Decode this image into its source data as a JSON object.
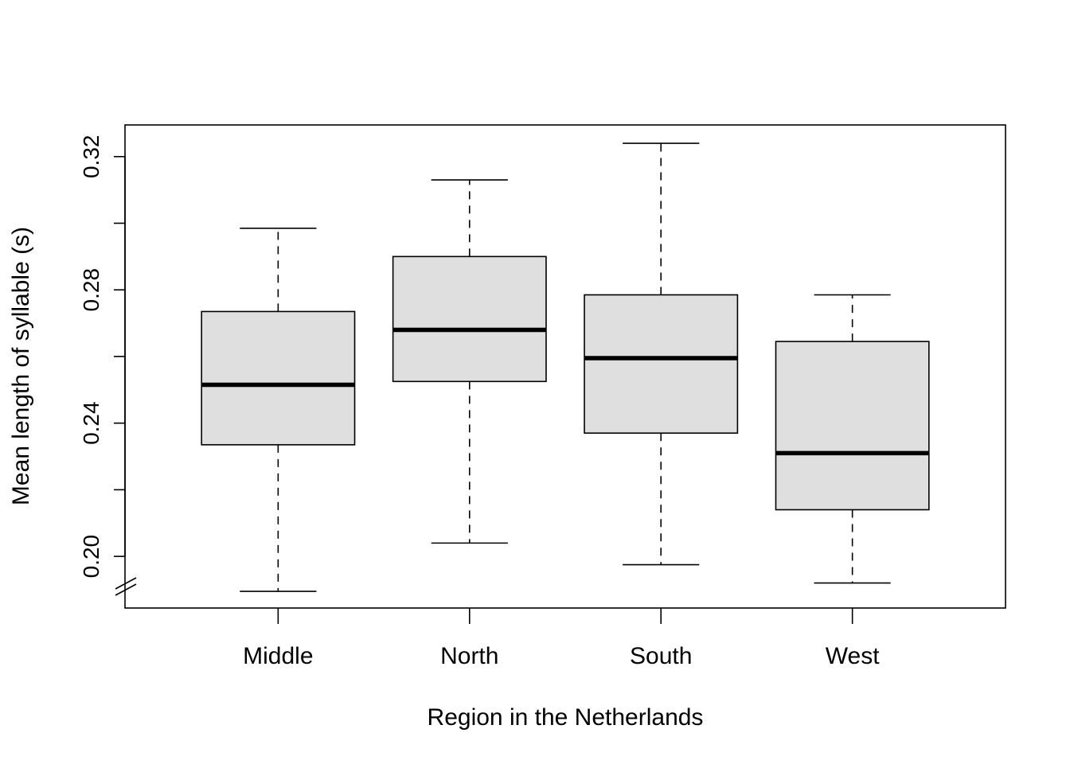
{
  "chart_data": {
    "type": "boxplot",
    "xlabel": "Region in the Netherlands",
    "ylabel": "Mean length of syllable (s)",
    "categories": [
      "Middle",
      "North",
      "South",
      "West"
    ],
    "boxes": [
      {
        "name": "Middle",
        "min": 0.1895,
        "q1": 0.2335,
        "median": 0.2515,
        "q3": 0.2735,
        "max": 0.2985
      },
      {
        "name": "North",
        "min": 0.204,
        "q1": 0.2525,
        "median": 0.268,
        "q3": 0.29,
        "max": 0.313
      },
      {
        "name": "South",
        "min": 0.1975,
        "q1": 0.237,
        "median": 0.2595,
        "q3": 0.2785,
        "max": 0.324
      },
      {
        "name": "West",
        "min": 0.192,
        "q1": 0.214,
        "median": 0.231,
        "q3": 0.2645,
        "max": 0.2785
      }
    ],
    "ylim": [
      0.1845,
      0.3295
    ],
    "y_ticks": [
      0.2,
      0.22,
      0.24,
      0.26,
      0.28,
      0.3,
      0.32
    ],
    "y_tick_labels": [
      "0.20",
      "",
      "0.24",
      "",
      "0.28",
      "",
      "0.32"
    ],
    "axis_break": true,
    "grid": false,
    "legend": "none",
    "colors": {
      "box_fill": "#dfdfdf",
      "stroke": "#000000"
    }
  }
}
